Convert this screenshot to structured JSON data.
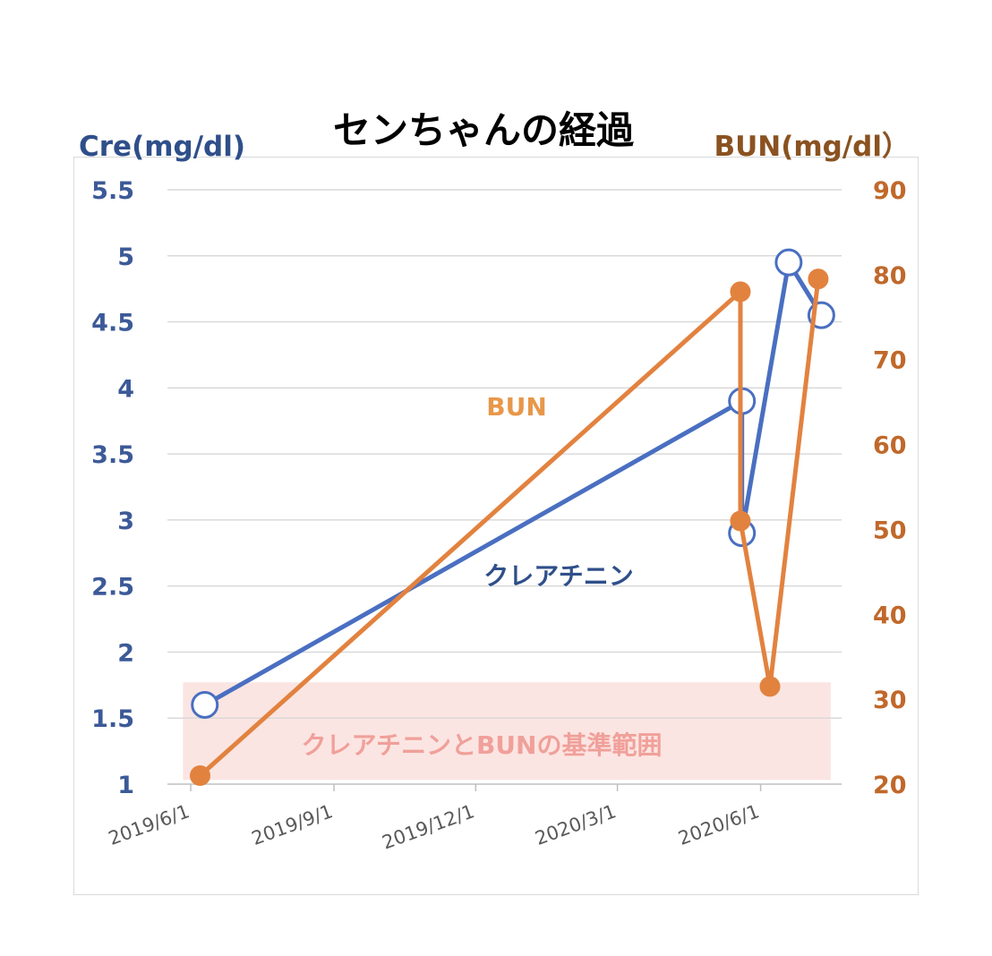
{
  "chart_data": {
    "type": "line",
    "title": "センちゃんの経過",
    "y_left_label": "Cre(mg/dl)",
    "y_right_label": "BUN(mg/dl）",
    "y_left_lim": [
      1,
      5.5
    ],
    "y_right_lim": [
      20,
      90
    ],
    "y_left_ticks": [
      "1",
      "1.5",
      "2",
      "2.5",
      "3",
      "3.5",
      "4",
      "4.5",
      "5",
      "5.5"
    ],
    "y_right_ticks": [
      "20",
      "30",
      "40",
      "50",
      "60",
      "70",
      "80",
      "90"
    ],
    "x_lim": [
      "2019-05-17",
      "2020-07-23"
    ],
    "x_ticks": [
      "2019-06-01",
      "2019-09-01",
      "2019-12-01",
      "2020-03-01",
      "2020-06-01"
    ],
    "x_tick_labels": [
      "2019/6/1",
      "2019/9/1",
      "2019/12/1",
      "2020/3/1",
      "2020/6/1"
    ],
    "grid": true,
    "reference_band": {
      "label": "クレアチニンとBUNの基準範囲",
      "x": [
        "2019-05-27",
        "2020-07-16"
      ],
      "y_right": [
        20.5,
        32
      ],
      "color": "#fbe5e2"
    },
    "series": [
      {
        "name": "クレアチニン",
        "axis": "left",
        "color": "#4a6fc1",
        "marker": "open-circle",
        "points": [
          {
            "x": "2019-06-10",
            "y": 1.6
          },
          {
            "x": "2020-05-20",
            "y": 3.9
          },
          {
            "x": "2020-05-20",
            "y": 2.9
          },
          {
            "x": "2020-06-19",
            "y": 4.95
          },
          {
            "x": "2020-07-10",
            "y": 4.55
          }
        ]
      },
      {
        "name": "BUN",
        "axis": "right",
        "color": "#e2823f",
        "marker": "filled-circle",
        "points": [
          {
            "x": "2019-06-07",
            "y": 21
          },
          {
            "x": "2020-05-19",
            "y": 78
          },
          {
            "x": "2020-05-19",
            "y": 51
          },
          {
            "x": "2020-06-07",
            "y": 31.5
          },
          {
            "x": "2020-07-08",
            "y": 79.5
          }
        ]
      }
    ]
  }
}
